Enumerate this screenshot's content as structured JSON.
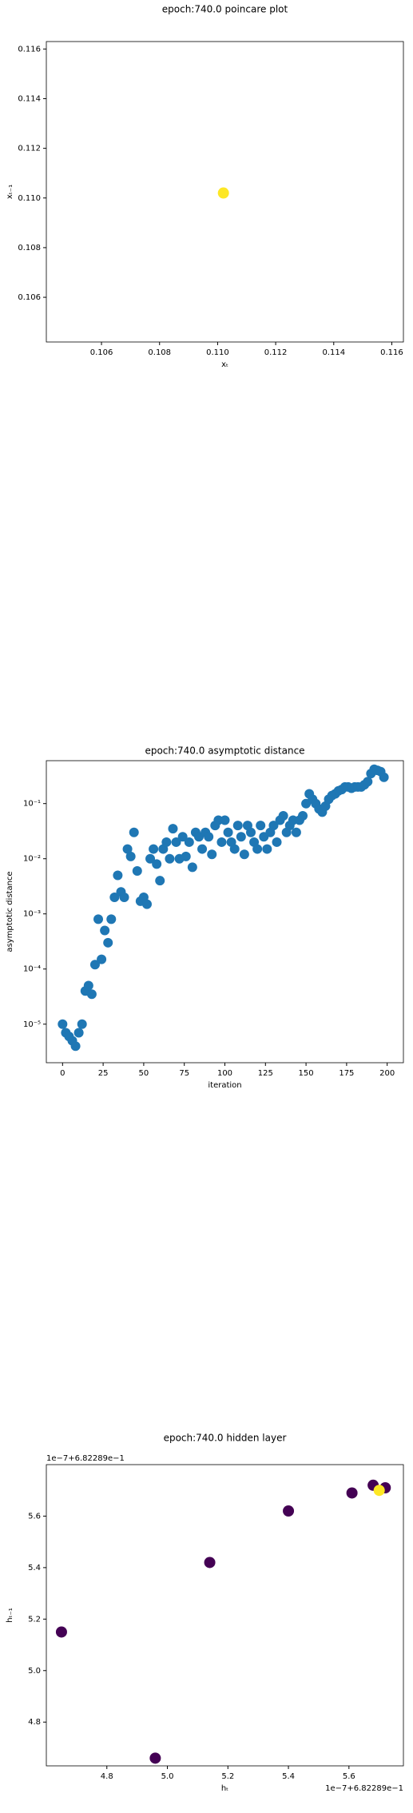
{
  "chart_data": [
    {
      "type": "scatter",
      "title": "epoch:740.0 poincare plot",
      "xlabel": "xₜ",
      "ylabel": "xₜ₋₁",
      "x": [
        0.1102
      ],
      "values": [
        0.1102
      ],
      "color": "#fde725",
      "xlim": [
        0.1041,
        0.1164
      ],
      "ylim": [
        0.1042,
        0.1163
      ],
      "xticks": [
        0.106,
        0.108,
        {
          "value": 0.11,
          "label": "0.110"
        },
        0.112,
        0.114,
        0.116
      ],
      "yticks": [
        0.106,
        0.108,
        {
          "value": 0.11,
          "label": "0.110"
        },
        0.112,
        0.114,
        0.116
      ]
    },
    {
      "type": "scatter",
      "title": "epoch:740.0 asymptotic distance",
      "xlabel": "iteration",
      "ylabel": "asymptotic distance",
      "yscale": "log",
      "color": "#1f77b4",
      "x": [
        0,
        2,
        4,
        6,
        8,
        10,
        12,
        14,
        16,
        18,
        20,
        22,
        24,
        26,
        28,
        30,
        32,
        34,
        36,
        38,
        40,
        42,
        44,
        46,
        48,
        50,
        52,
        54,
        56,
        58,
        60,
        62,
        64,
        66,
        68,
        70,
        72,
        74,
        76,
        78,
        80,
        82,
        84,
        86,
        88,
        90,
        92,
        94,
        96,
        98,
        100,
        102,
        104,
        106,
        108,
        110,
        112,
        114,
        116,
        118,
        120,
        122,
        124,
        126,
        128,
        130,
        132,
        134,
        136,
        138,
        140,
        142,
        144,
        146,
        148,
        150,
        152,
        154,
        156,
        158,
        160,
        162,
        164,
        166,
        168,
        170,
        172,
        174,
        176,
        178,
        180,
        182,
        184,
        186,
        188,
        190,
        192,
        194,
        196,
        198
      ],
      "values": [
        1e-05,
        7e-06,
        6e-06,
        5e-06,
        4e-06,
        7e-06,
        1e-05,
        4e-05,
        5e-05,
        3.5e-05,
        0.00012,
        0.0008,
        0.00015,
        0.0005,
        0.0003,
        0.0008,
        0.002,
        0.005,
        0.0025,
        0.002,
        0.015,
        0.011,
        0.03,
        0.006,
        0.0017,
        0.002,
        0.0015,
        0.01,
        0.015,
        0.008,
        0.004,
        0.015,
        0.02,
        0.01,
        0.035,
        0.02,
        0.01,
        0.025,
        0.011,
        0.02,
        0.007,
        0.03,
        0.025,
        0.015,
        0.03,
        0.025,
        0.012,
        0.04,
        0.05,
        0.02,
        0.05,
        0.03,
        0.02,
        0.015,
        0.04,
        0.025,
        0.012,
        0.04,
        0.03,
        0.02,
        0.015,
        0.04,
        0.025,
        0.015,
        0.03,
        0.04,
        0.02,
        0.05,
        0.06,
        0.03,
        0.04,
        0.05,
        0.03,
        0.05,
        0.06,
        0.1,
        0.15,
        0.12,
        0.1,
        0.08,
        0.07,
        0.09,
        0.12,
        0.14,
        0.15,
        0.17,
        0.18,
        0.2,
        0.2,
        0.19,
        0.2,
        0.2,
        0.2,
        0.22,
        0.25,
        0.35,
        0.42,
        0.4,
        0.38,
        0.3
      ],
      "xlim": [
        -10,
        210
      ],
      "ylim": [
        2e-06,
        0.6
      ],
      "xticks": [
        0,
        25,
        50,
        75,
        100,
        125,
        150,
        175,
        200
      ],
      "yticks": [
        {
          "value": 1e-05,
          "label": "10⁻⁵"
        },
        {
          "value": 0.0001,
          "label": "10⁻⁴"
        },
        {
          "value": 0.001,
          "label": "10⁻³"
        },
        {
          "value": 0.01,
          "label": "10⁻²"
        },
        {
          "value": 0.1,
          "label": "10⁻¹"
        }
      ]
    },
    {
      "type": "scatter",
      "title": "epoch:740.0 hidden layer",
      "xlabel": "hₜ",
      "ylabel": "hₜ₋₁",
      "x_offset_text": "1e−7+6.82289e−1",
      "y_offset_text": "1e−7+6.82289e−1",
      "x": [
        4.65,
        4.96,
        5.14,
        5.4,
        5.61,
        5.68,
        5.72,
        5.7
      ],
      "values": [
        5.15,
        4.66,
        5.42,
        5.62,
        5.69,
        5.72,
        5.71,
        5.7
      ],
      "colors": [
        "#440154",
        "#440154",
        "#440154",
        "#440154",
        "#440154",
        "#440154",
        "#440154",
        "#fde725"
      ],
      "xlim": [
        4.6,
        5.78
      ],
      "ylim": [
        4.63,
        5.8
      ],
      "xticks": [
        4.8,
        {
          "value": 5,
          "label": "5.0"
        },
        5.2,
        5.4,
        5.6
      ],
      "yticks": [
        4.8,
        {
          "value": 5,
          "label": "5.0"
        },
        5.2,
        5.4,
        5.6
      ]
    }
  ]
}
